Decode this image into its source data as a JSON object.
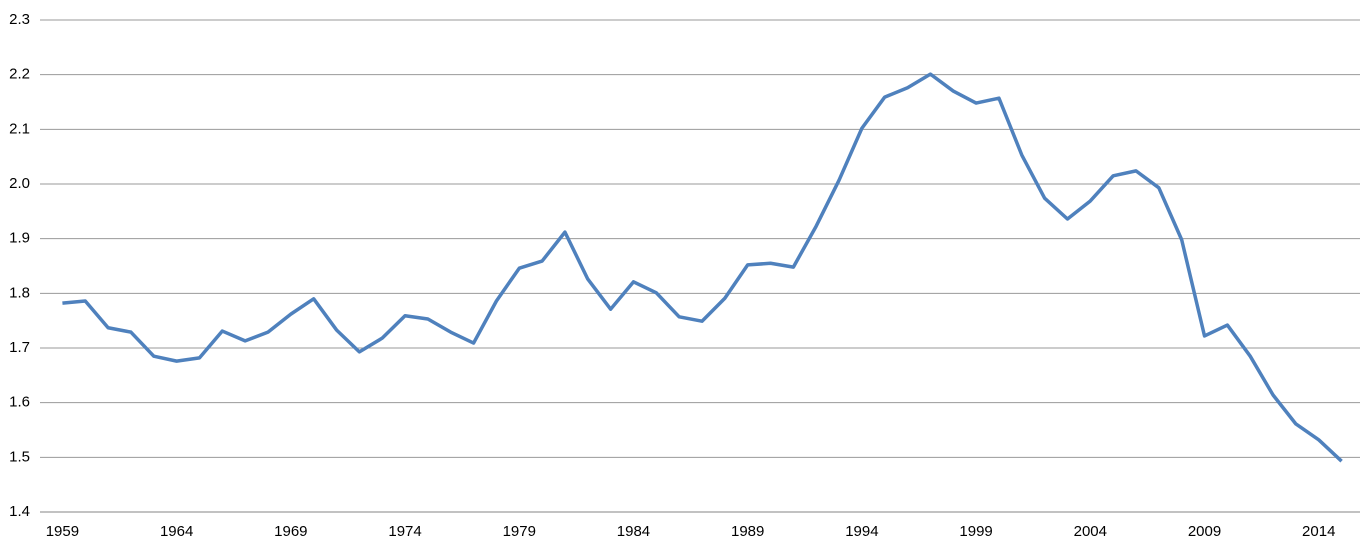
{
  "chart_data": {
    "type": "line",
    "categories": [
      "1959",
      null,
      null,
      null,
      null,
      "1964",
      null,
      null,
      null,
      null,
      "1969",
      null,
      null,
      null,
      null,
      "1974",
      null,
      null,
      null,
      null,
      "1979",
      null,
      null,
      null,
      null,
      "1984",
      null,
      null,
      null,
      null,
      "1989",
      null,
      null,
      null,
      null,
      "1994",
      null,
      null,
      null,
      null,
      "1999",
      null,
      null,
      null,
      null,
      "2004",
      null,
      null,
      null,
      null,
      "2009",
      null,
      null,
      null,
      null,
      "2014",
      null
    ],
    "values": [
      1.782,
      1.786,
      1.737,
      1.729,
      1.685,
      1.676,
      1.682,
      1.731,
      1.713,
      1.729,
      1.762,
      1.79,
      1.733,
      1.693,
      1.718,
      1.759,
      1.753,
      1.729,
      1.709,
      1.786,
      1.846,
      1.859,
      1.912,
      1.826,
      1.771,
      1.821,
      1.801,
      1.757,
      1.749,
      1.791,
      1.852,
      1.855,
      1.848,
      1.923,
      2.007,
      2.102,
      2.159,
      2.176,
      2.201,
      2.17,
      2.148,
      2.157,
      2.053,
      1.974,
      1.936,
      1.969,
      2.015,
      2.024,
      1.993,
      1.898,
      1.722,
      1.742,
      1.685,
      1.614,
      1.561,
      1.532,
      1.493
    ],
    "color": "#4f81bd",
    "ylim": [
      1.4,
      2.3
    ],
    "yticks": [
      1.4,
      1.5,
      1.6,
      1.7,
      1.8,
      1.9,
      {
        "value": 2,
        "label": "2.0"
      },
      2.1,
      2.2,
      2.3
    ],
    "grid": true
  }
}
